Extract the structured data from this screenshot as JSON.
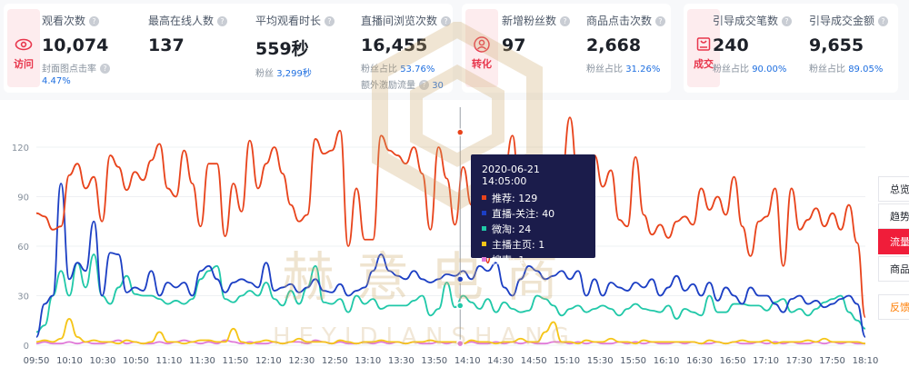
{
  "cards": [
    {
      "badge": "访问",
      "icon": "eye-icon",
      "metrics": [
        {
          "label": "观看次数",
          "value": "10,074",
          "sub": "封面图点击率",
          "sub_value": "4.47%"
        },
        {
          "label": "最高在线人数",
          "value": "137"
        },
        {
          "label": "平均观看时长",
          "value": "559秒",
          "sub": "粉丝",
          "sub_value": "3,299秒"
        },
        {
          "label": "直播间浏览次数",
          "value": "16,455",
          "sub": "粉丝占比",
          "sub_value": "53.76%",
          "sub2": "额外激励流量",
          "sub2_value": "30"
        }
      ]
    },
    {
      "badge": "转化",
      "icon": "user-add-icon",
      "metrics": [
        {
          "label": "新增粉丝数",
          "value": "97"
        },
        {
          "label": "商品点击次数",
          "value": "2,668",
          "sub": "粉丝占比",
          "sub_value": "31.26%"
        }
      ]
    },
    {
      "badge": "成交",
      "icon": "cart-icon",
      "metrics": [
        {
          "label": "引导成交笔数",
          "value": "240",
          "sub": "粉丝占比",
          "sub_value": "90.00%"
        },
        {
          "label": "引导成交金额",
          "value": "9,655",
          "sub": "粉丝占比",
          "sub_value": "89.05%"
        }
      ]
    }
  ],
  "side_tabs": [
    "总览",
    "趋势",
    "流量",
    "商品",
    "反馈"
  ],
  "side_tab_active": "流量",
  "tooltip": {
    "time": "2020-06-21 14:05:00",
    "rows": [
      {
        "name": "推荐",
        "value": "129"
      },
      {
        "name": "直播-关注",
        "value": "40"
      },
      {
        "name": "微淘",
        "value": "24"
      },
      {
        "name": "主播主页",
        "value": "1"
      },
      {
        "name": "搜索",
        "value": "1"
      }
    ]
  },
  "watermark": {
    "cn": "赫意电商",
    "en": "HEYIDIANSHANG"
  },
  "colors": {
    "accent": "#f01d3a",
    "link": "#1f6fe0",
    "tooltip_bg": "#1b1c4b"
  },
  "chart_data": {
    "type": "line",
    "ylim": [
      0,
      120
    ],
    "yticks": [
      "0",
      "30",
      "60",
      "90",
      "120"
    ],
    "x_labels": [
      "09:50",
      "10:10",
      "10:30",
      "10:50",
      "11:10",
      "11:30",
      "11:50",
      "12:10",
      "12:30",
      "12:50",
      "13:10",
      "13:30",
      "13:50",
      "14:10",
      "14:30",
      "14:50",
      "15:10",
      "15:30",
      "15:50",
      "16:10",
      "16:30",
      "16:50",
      "17:10",
      "17:30",
      "17:50",
      "18:10"
    ],
    "hover_index": 13,
    "series": [
      {
        "name": "推荐",
        "color": "#e8431b",
        "values": [
          80,
          78,
          70,
          72,
          103,
          110,
          95,
          102,
          75,
          115,
          108,
          94,
          105,
          100,
          112,
          122,
          95,
          90,
          118,
          98,
          72,
          110,
          110,
          66,
          98,
          81,
          124,
          95,
          110,
          120,
          104,
          85,
          75,
          79,
          125,
          116,
          118,
          130,
          60,
          95,
          64,
          64,
          127,
          118,
          115,
          110,
          120,
          104,
          70,
          120,
          101,
          73,
          108,
          85,
          90,
          50,
          95,
          104,
          127,
          80,
          60,
          70,
          86,
          105,
          103,
          138,
          100,
          58,
          115,
          96,
          106,
          76,
          72,
          114,
          79,
          67,
          73,
          65,
          75,
          78,
          73,
          95,
          82,
          90,
          79,
          102,
          72,
          54,
          75,
          78,
          95,
          48,
          95,
          70,
          76,
          83,
          72,
          80,
          70,
          85,
          62,
          17
        ]
      },
      {
        "name": "直播-关注",
        "color": "#1c3fc4",
        "values": [
          5,
          25,
          30,
          98,
          40,
          50,
          45,
          75,
          30,
          56,
          55,
          32,
          35,
          33,
          45,
          30,
          38,
          35,
          38,
          30,
          45,
          48,
          40,
          32,
          38,
          40,
          38,
          35,
          50,
          33,
          35,
          37,
          32,
          35,
          40,
          33,
          32,
          37,
          30,
          33,
          35,
          45,
          55,
          45,
          42,
          40,
          45,
          40,
          38,
          40,
          43,
          42,
          45,
          40,
          48,
          45,
          50,
          35,
          30,
          40,
          48,
          45,
          40,
          42,
          45,
          40,
          45,
          30,
          40,
          30,
          38,
          35,
          33,
          38,
          35,
          40,
          30,
          35,
          42,
          33,
          37,
          30,
          38,
          27,
          35,
          30,
          25,
          35,
          30,
          30,
          25,
          20,
          28,
          30,
          25,
          27,
          23,
          25,
          28,
          30,
          25,
          5
        ]
      },
      {
        "name": "微淘",
        "color": "#20c8a8",
        "values": [
          8,
          12,
          30,
          45,
          30,
          50,
          35,
          55,
          30,
          25,
          35,
          42,
          31,
          30,
          30,
          28,
          25,
          27,
          25,
          28,
          40,
          45,
          48,
          28,
          26,
          30,
          33,
          30,
          38,
          28,
          24,
          33,
          25,
          35,
          48,
          26,
          25,
          28,
          20,
          30,
          25,
          28,
          22,
          24,
          24,
          24,
          27,
          30,
          18,
          22,
          38,
          23,
          30,
          26,
          22,
          28,
          20,
          26,
          22,
          20,
          21,
          30,
          28,
          24,
          18,
          22,
          24,
          20,
          22,
          24,
          22,
          18,
          22,
          25,
          22,
          21,
          20,
          24,
          16,
          22,
          20,
          18,
          30,
          20,
          20,
          25,
          25,
          24,
          24,
          21,
          26,
          28,
          20,
          22,
          18,
          22,
          26,
          28,
          30,
          20,
          15,
          10
        ]
      },
      {
        "name": "主播主页",
        "color": "#f5c518",
        "values": [
          2,
          3,
          2,
          4,
          16,
          5,
          2,
          3,
          2,
          2,
          1,
          3,
          2,
          1,
          2,
          8,
          2,
          2,
          1,
          2,
          3,
          3,
          2,
          2,
          10,
          2,
          1,
          2,
          3,
          2,
          1,
          2,
          4,
          2,
          2,
          2,
          1,
          3,
          2,
          1,
          2,
          2,
          3,
          2,
          2,
          1,
          2,
          2,
          3,
          2,
          2,
          2,
          1,
          3,
          2,
          2,
          1,
          2,
          2,
          4,
          2,
          2,
          8,
          14,
          2,
          2,
          1,
          3,
          2,
          2,
          4,
          2,
          2,
          1,
          3,
          2,
          2,
          2,
          2,
          2,
          2,
          1,
          3,
          2,
          1,
          2,
          3,
          2,
          2,
          3,
          1,
          2,
          2,
          2,
          3,
          2,
          4,
          2,
          2,
          2,
          2,
          1
        ]
      },
      {
        "name": "搜索",
        "color": "#e079d8",
        "values": [
          1,
          2,
          1,
          1,
          2,
          1,
          2,
          1,
          1,
          2,
          3,
          1,
          2,
          1,
          1,
          2,
          1,
          2,
          3,
          2,
          1,
          2,
          1,
          3,
          2,
          1,
          2,
          1,
          1,
          2,
          1,
          2,
          2,
          1,
          3,
          2,
          1,
          2,
          1,
          1,
          2,
          1,
          2,
          1,
          2,
          1,
          2,
          1,
          1,
          2,
          1,
          2,
          1,
          2,
          1,
          1,
          2,
          1,
          2,
          1,
          2,
          1,
          1,
          2,
          2,
          1,
          2,
          1,
          2,
          1,
          1,
          2,
          1,
          2,
          1,
          2,
          1,
          1,
          2,
          1,
          2,
          1,
          1,
          2,
          1,
          2,
          1,
          1,
          2,
          1,
          2,
          1,
          2,
          1,
          1,
          2,
          1,
          2,
          1,
          2,
          1,
          1
        ]
      }
    ]
  }
}
